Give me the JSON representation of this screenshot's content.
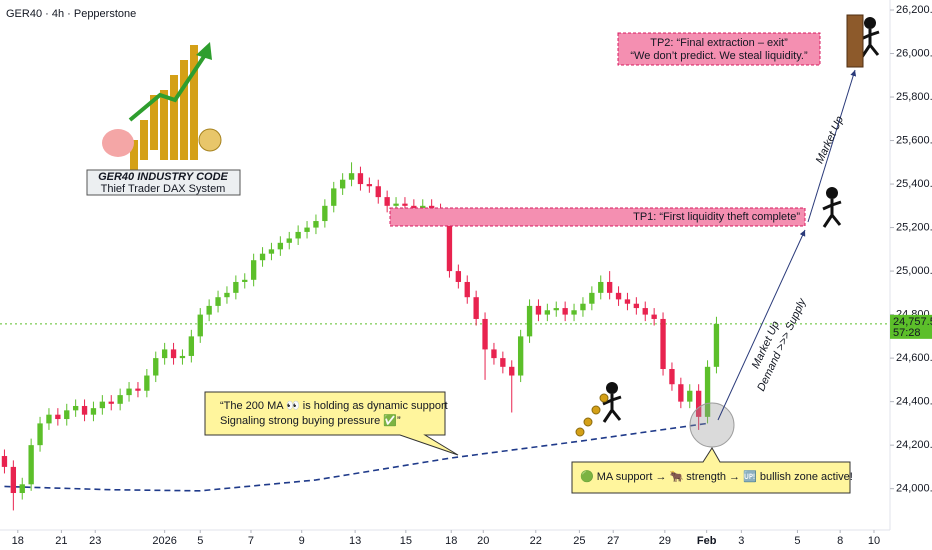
{
  "chart_data": {
    "type": "candlestick",
    "title": "GER40 · 4h · Pepperstone",
    "x": [
      0,
      1,
      2,
      3,
      4,
      5,
      6,
      7,
      8,
      9,
      10,
      11,
      12,
      13,
      14,
      15,
      16,
      17,
      18,
      19,
      20,
      21,
      22,
      23,
      24,
      25,
      26,
      27,
      28,
      29,
      30,
      31,
      32,
      33,
      34,
      35,
      36,
      37,
      38,
      39,
      40,
      41,
      42,
      43,
      44,
      45,
      46,
      47,
      48,
      49,
      50,
      51,
      52,
      53,
      54,
      55,
      56,
      57,
      58,
      59,
      60,
      61,
      62,
      63,
      64,
      65,
      66,
      67,
      68,
      69,
      70,
      71,
      72,
      73,
      74,
      75,
      76,
      77,
      78,
      79,
      80
    ],
    "open": [
      24150,
      24100,
      23980,
      24020,
      24200,
      24300,
      24340,
      24320,
      24360,
      24380,
      24340,
      24370,
      24400,
      24390,
      24430,
      24460,
      24450,
      24520,
      24600,
      24640,
      24600,
      24610,
      24700,
      24800,
      24840,
      24880,
      24900,
      24950,
      24960,
      25050,
      25080,
      25100,
      25130,
      25150,
      25180,
      25200,
      25230,
      25300,
      25380,
      25420,
      25450,
      25400,
      25390,
      25340,
      25300,
      25310,
      25300,
      25290,
      25300,
      25280,
      25260,
      25000,
      24950,
      24880,
      24780,
      24640,
      24600,
      24560,
      24520,
      24700,
      24840,
      24800,
      24820,
      24830,
      24800,
      24820,
      24850,
      24900,
      24950,
      24900,
      24870,
      24850,
      24830,
      24800,
      24780,
      24550,
      24480,
      24400,
      24450,
      24330,
      24560
    ],
    "high": [
      24180,
      24130,
      24050,
      24230,
      24330,
      24370,
      24370,
      24390,
      24410,
      24410,
      24400,
      24430,
      24430,
      24460,
      24490,
      24490,
      24550,
      24630,
      24670,
      24670,
      24640,
      24730,
      24830,
      24870,
      24910,
      24930,
      24980,
      24990,
      25080,
      25110,
      25130,
      25160,
      25180,
      25210,
      25230,
      25260,
      25330,
      25410,
      25450,
      25500,
      25480,
      25430,
      25420,
      25370,
      25340,
      25340,
      25330,
      25330,
      25330,
      25310,
      25290,
      25030,
      24980,
      24910,
      24810,
      24670,
      24630,
      24590,
      24730,
      24870,
      24870,
      24850,
      24860,
      24860,
      24850,
      24880,
      24930,
      24980,
      25000,
      24930,
      24900,
      24880,
      24860,
      24830,
      24810,
      24580,
      24510,
      24480,
      24480,
      24590,
      24790
    ],
    "low": [
      24070,
      23900,
      23950,
      23990,
      24170,
      24270,
      24290,
      24290,
      24330,
      24310,
      24310,
      24340,
      24360,
      24360,
      24400,
      24420,
      24420,
      24490,
      24570,
      24570,
      24570,
      24580,
      24670,
      24770,
      24810,
      24850,
      24870,
      24920,
      24930,
      25020,
      25050,
      25070,
      25100,
      25120,
      25150,
      25170,
      25200,
      25270,
      25350,
      25390,
      25370,
      25360,
      25310,
      25270,
      25270,
      25270,
      25260,
      25260,
      25250,
      25230,
      24970,
      24920,
      24850,
      24750,
      24500,
      24570,
      24530,
      24350,
      24490,
      24670,
      24770,
      24770,
      24790,
      24770,
      24770,
      24790,
      24820,
      24870,
      24870,
      24840,
      24820,
      24800,
      24770,
      24750,
      24520,
      24450,
      24370,
      24370,
      24270,
      24300,
      24530
    ],
    "close": [
      24100,
      23980,
      24020,
      24200,
      24300,
      24340,
      24320,
      24360,
      24380,
      24340,
      24370,
      24400,
      24390,
      24430,
      24460,
      24450,
      24520,
      24600,
      24640,
      24600,
      24610,
      24700,
      24800,
      24840,
      24880,
      24900,
      24950,
      24960,
      25050,
      25080,
      25100,
      25130,
      25150,
      25180,
      25200,
      25230,
      25300,
      25380,
      25420,
      25450,
      25400,
      25390,
      25340,
      25300,
      25310,
      25300,
      25290,
      25300,
      25280,
      25260,
      25000,
      24950,
      24880,
      24780,
      24640,
      24600,
      24560,
      24520,
      24700,
      24840,
      24800,
      24820,
      24830,
      24800,
      24820,
      24850,
      24900,
      24950,
      24900,
      24870,
      24850,
      24830,
      24800,
      24780,
      24550,
      24480,
      24400,
      24450,
      24330,
      24560,
      24757.5
    ],
    "up_color": "#5cbf2a",
    "down_color": "#e8234f",
    "ma_line": {
      "x": [
        0,
        12,
        22,
        35,
        50,
        65,
        79
      ],
      "values": [
        24010,
        23995,
        23990,
        24040,
        24140,
        24220,
        24300
      ],
      "color": "#1f3a8a"
    },
    "last_price": {
      "value": 24757.5,
      "label": "24,757.5"
    },
    "countdown": "57:28",
    "xlim": [
      -0.5,
      99.5
    ],
    "xticks": [
      {
        "value": 1.5,
        "label": "18"
      },
      {
        "value": 6.4,
        "label": "21"
      },
      {
        "value": 10.2,
        "label": "23"
      },
      {
        "value": 18,
        "label": "2026"
      },
      {
        "value": 22,
        "label": "5"
      },
      {
        "value": 27.7,
        "label": "7"
      },
      {
        "value": 33.4,
        "label": "9"
      },
      {
        "value": 39.4,
        "label": "13"
      },
      {
        "value": 45.1,
        "label": "15"
      },
      {
        "value": 50.2,
        "label": "18"
      },
      {
        "value": 53.8,
        "label": "20"
      },
      {
        "value": 59.7,
        "label": "22"
      },
      {
        "value": 64.6,
        "label": "25"
      },
      {
        "value": 68.4,
        "label": "27"
      },
      {
        "value": 74.2,
        "label": "29"
      },
      {
        "value": 78.9,
        "label": "Feb"
      },
      {
        "value": 82.8,
        "label": "3"
      },
      {
        "value": 89.1,
        "label": "5"
      },
      {
        "value": 93.9,
        "label": "8"
      },
      {
        "value": 97.7,
        "label": "10"
      }
    ],
    "ylim": [
      23810,
      26246
    ],
    "yticks": [
      {
        "value": 24000,
        "label": "24,000.0"
      },
      {
        "value": 24200,
        "label": "24,200.0"
      },
      {
        "value": 24400,
        "label": "24,400.0"
      },
      {
        "value": 24600,
        "label": "24,600.0"
      },
      {
        "value": 24800,
        "label": "24,800.0"
      },
      {
        "value": 25000,
        "label": "25,000.0"
      },
      {
        "value": 25200,
        "label": "25,200.0"
      },
      {
        "value": 25400,
        "label": "25,400.0"
      },
      {
        "value": 25600,
        "label": "25,600.0"
      },
      {
        "value": 25800,
        "label": "25,800.0"
      },
      {
        "value": 26000,
        "label": "26,000.0"
      },
      {
        "value": 26200,
        "label": "26,200.0"
      }
    ],
    "annotations": {
      "logo": [
        "GER40 INDUSTRY CODE",
        "Thief Trader DAX System"
      ],
      "tp1": "TP1: “First liquidity theft complete”",
      "tp2": [
        "TP2: “Final extraction – exit”",
        "“We don’t predict. We steal liquidity.”"
      ],
      "callout": [
        "“The 200 MA 👀 is holding as dynamic support",
        "Signaling strong buying pressure ✅”"
      ],
      "note": "🟢 MA support → 🐂 strength → 🆙 bullish zone active!",
      "arrow_upper": "Market Up",
      "arrow_lower": [
        "Market Up",
        "Demand >>> Supply"
      ]
    }
  }
}
